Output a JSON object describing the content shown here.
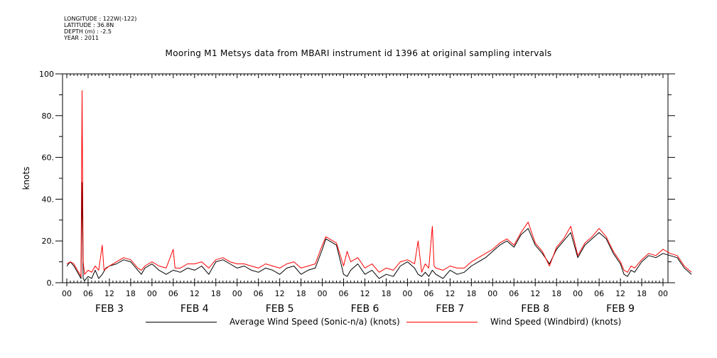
{
  "meta": {
    "longitude": "LONGITUDE : 122W(-122)",
    "latitude": "LATITUDE : 36.8N",
    "depth": "DEPTH (m) : -2.5",
    "year": "YEAR : 2011"
  },
  "chart_data": {
    "type": "line",
    "title": "Mooring M1 Metsys data from MBARI instrument id 1396 at original sampling intervals",
    "ylabel": "knots",
    "xlabel": "",
    "ylim": [
      0,
      100
    ],
    "xlim_hours": [
      0,
      168
    ],
    "y_ticks": [
      "0.",
      "20.",
      "40.",
      "60.",
      "80.",
      "100"
    ],
    "x_hour_labels": [
      "00",
      "06",
      "12",
      "18",
      "00",
      "06",
      "12",
      "18",
      "00",
      "06",
      "12",
      "18",
      "00",
      "06",
      "12",
      "18",
      "00",
      "06",
      "12",
      "18",
      "00",
      "06",
      "12",
      "18",
      "00",
      "06",
      "12",
      "18",
      "00"
    ],
    "x_day_labels": [
      "FEB  3",
      "FEB  4",
      "FEB  5",
      "FEB  6",
      "FEB  7",
      "FEB  8",
      "FEB  9"
    ],
    "legend_position": "bottom",
    "series": [
      {
        "name": "Average Wind Speed (Sonic-n/a) (knots)",
        "color": "#000000",
        "points": [
          [
            0,
            8
          ],
          [
            1,
            10
          ],
          [
            2,
            8
          ],
          [
            3,
            5
          ],
          [
            4,
            2
          ],
          [
            4.3,
            48
          ],
          [
            4.6,
            2
          ],
          [
            5,
            1
          ],
          [
            6,
            3
          ],
          [
            7,
            2
          ],
          [
            8,
            6
          ],
          [
            9,
            2
          ],
          [
            10,
            4
          ],
          [
            11,
            7
          ],
          [
            12,
            8
          ],
          [
            14,
            9
          ],
          [
            16,
            11
          ],
          [
            18,
            10
          ],
          [
            20,
            6
          ],
          [
            21,
            4
          ],
          [
            22,
            7
          ],
          [
            24,
            9
          ],
          [
            26,
            6
          ],
          [
            28,
            4
          ],
          [
            30,
            6
          ],
          [
            32,
            5
          ],
          [
            34,
            7
          ],
          [
            36,
            6
          ],
          [
            38,
            8
          ],
          [
            40,
            4
          ],
          [
            42,
            10
          ],
          [
            44,
            11
          ],
          [
            46,
            9
          ],
          [
            48,
            7
          ],
          [
            50,
            8
          ],
          [
            52,
            6
          ],
          [
            54,
            5
          ],
          [
            56,
            7
          ],
          [
            58,
            6
          ],
          [
            60,
            4
          ],
          [
            62,
            7
          ],
          [
            64,
            8
          ],
          [
            66,
            4
          ],
          [
            68,
            6
          ],
          [
            70,
            7
          ],
          [
            72,
            16
          ],
          [
            73,
            21
          ],
          [
            74,
            20
          ],
          [
            76,
            18
          ],
          [
            78,
            4
          ],
          [
            79,
            3
          ],
          [
            80,
            6
          ],
          [
            82,
            9
          ],
          [
            84,
            4
          ],
          [
            86,
            6
          ],
          [
            88,
            2
          ],
          [
            90,
            4
          ],
          [
            92,
            3
          ],
          [
            94,
            8
          ],
          [
            96,
            10
          ],
          [
            98,
            7
          ],
          [
            99,
            4
          ],
          [
            100,
            3
          ],
          [
            101,
            5
          ],
          [
            102,
            3
          ],
          [
            103,
            6
          ],
          [
            104,
            4
          ],
          [
            106,
            2
          ],
          [
            108,
            6
          ],
          [
            110,
            4
          ],
          [
            112,
            5
          ],
          [
            114,
            8
          ],
          [
            116,
            10
          ],
          [
            118,
            12
          ],
          [
            120,
            15
          ],
          [
            122,
            18
          ],
          [
            124,
            20
          ],
          [
            126,
            17
          ],
          [
            128,
            23
          ],
          [
            130,
            26
          ],
          [
            132,
            18
          ],
          [
            134,
            14
          ],
          [
            136,
            9
          ],
          [
            138,
            16
          ],
          [
            140,
            20
          ],
          [
            142,
            24
          ],
          [
            144,
            12
          ],
          [
            146,
            18
          ],
          [
            148,
            21
          ],
          [
            150,
            24
          ],
          [
            152,
            21
          ],
          [
            154,
            14
          ],
          [
            156,
            9
          ],
          [
            157,
            4
          ],
          [
            158,
            3
          ],
          [
            159,
            6
          ],
          [
            160,
            5
          ],
          [
            162,
            10
          ],
          [
            164,
            13
          ],
          [
            166,
            12
          ],
          [
            168,
            14
          ],
          [
            170,
            13
          ],
          [
            172,
            12
          ],
          [
            174,
            7
          ],
          [
            176,
            4
          ]
        ]
      },
      {
        "name": "Wind Speed (Windbird) (knots)",
        "color": "#ff0000",
        "points": [
          [
            0,
            9
          ],
          [
            1,
            10
          ],
          [
            2,
            9
          ],
          [
            3,
            6
          ],
          [
            4,
            3
          ],
          [
            4.3,
            92
          ],
          [
            4.6,
            10
          ],
          [
            5,
            4
          ],
          [
            6,
            6
          ],
          [
            7,
            5
          ],
          [
            8,
            8
          ],
          [
            9,
            6
          ],
          [
            10,
            18
          ],
          [
            10.5,
            6
          ],
          [
            12,
            8
          ],
          [
            14,
            10
          ],
          [
            16,
            12
          ],
          [
            18,
            11
          ],
          [
            20,
            7
          ],
          [
            21,
            6
          ],
          [
            22,
            8
          ],
          [
            24,
            10
          ],
          [
            26,
            8
          ],
          [
            28,
            7
          ],
          [
            30,
            16
          ],
          [
            30.5,
            7
          ],
          [
            32,
            7
          ],
          [
            34,
            9
          ],
          [
            36,
            9
          ],
          [
            38,
            10
          ],
          [
            40,
            7
          ],
          [
            42,
            11
          ],
          [
            44,
            12
          ],
          [
            46,
            10
          ],
          [
            48,
            9
          ],
          [
            50,
            9
          ],
          [
            52,
            8
          ],
          [
            54,
            7
          ],
          [
            56,
            9
          ],
          [
            58,
            8
          ],
          [
            60,
            7
          ],
          [
            62,
            9
          ],
          [
            64,
            10
          ],
          [
            66,
            7
          ],
          [
            68,
            8
          ],
          [
            70,
            9
          ],
          [
            72,
            18
          ],
          [
            73,
            22
          ],
          [
            74,
            21
          ],
          [
            76,
            19
          ],
          [
            78,
            8
          ],
          [
            79,
            15
          ],
          [
            80,
            10
          ],
          [
            82,
            12
          ],
          [
            84,
            7
          ],
          [
            86,
            9
          ],
          [
            88,
            5
          ],
          [
            90,
            7
          ],
          [
            92,
            6
          ],
          [
            94,
            10
          ],
          [
            96,
            11
          ],
          [
            98,
            9
          ],
          [
            99,
            20
          ],
          [
            100,
            5
          ],
          [
            101,
            9
          ],
          [
            102,
            7
          ],
          [
            103,
            27
          ],
          [
            103.5,
            8
          ],
          [
            104,
            7
          ],
          [
            106,
            6
          ],
          [
            108,
            8
          ],
          [
            110,
            7
          ],
          [
            112,
            7
          ],
          [
            114,
            10
          ],
          [
            116,
            12
          ],
          [
            118,
            14
          ],
          [
            120,
            16
          ],
          [
            122,
            19
          ],
          [
            124,
            21
          ],
          [
            126,
            18
          ],
          [
            128,
            24
          ],
          [
            130,
            29
          ],
          [
            132,
            19
          ],
          [
            134,
            15
          ],
          [
            136,
            8
          ],
          [
            138,
            17
          ],
          [
            140,
            21
          ],
          [
            142,
            27
          ],
          [
            144,
            13
          ],
          [
            146,
            19
          ],
          [
            148,
            22
          ],
          [
            150,
            26
          ],
          [
            152,
            22
          ],
          [
            154,
            15
          ],
          [
            156,
            10
          ],
          [
            157,
            6
          ],
          [
            158,
            5
          ],
          [
            159,
            8
          ],
          [
            160,
            7
          ],
          [
            162,
            11
          ],
          [
            164,
            14
          ],
          [
            166,
            13
          ],
          [
            168,
            16
          ],
          [
            170,
            14
          ],
          [
            172,
            13
          ],
          [
            174,
            8
          ],
          [
            176,
            5
          ]
        ]
      }
    ]
  }
}
